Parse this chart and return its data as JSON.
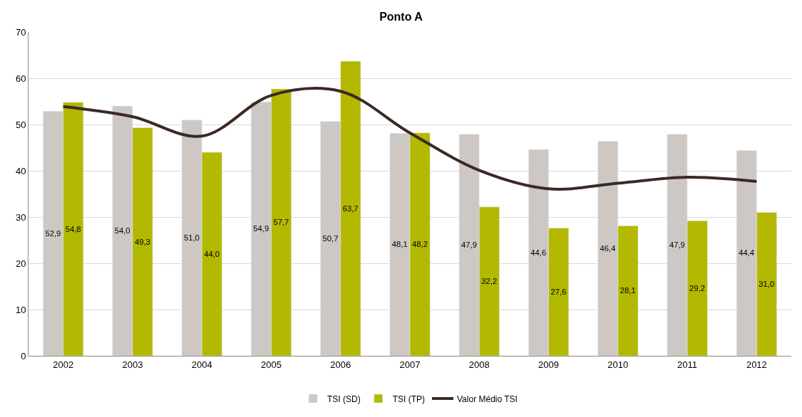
{
  "chart_data": {
    "type": "bar",
    "title": "Ponto A",
    "categories": [
      "2002",
      "2003",
      "2004",
      "2005",
      "2006",
      "2007",
      "2008",
      "2009",
      "2010",
      "2011",
      "2012"
    ],
    "series": [
      {
        "name": "TSI (SD)",
        "color": "#cdc8c3",
        "values": [
          52.9,
          54.0,
          51.0,
          54.9,
          50.7,
          48.1,
          47.9,
          44.6,
          46.4,
          47.9,
          44.4
        ],
        "value_labels": [
          "52,9",
          "54,0",
          "51,0",
          "54,9",
          "50,7",
          "48,1",
          "47,9",
          "44,6",
          "46,4",
          "47,9",
          "44,4"
        ]
      },
      {
        "name": "TSI (TP)",
        "color": "#b2b900",
        "values": [
          54.8,
          49.3,
          44.0,
          57.7,
          63.7,
          48.2,
          32.2,
          27.6,
          28.1,
          29.2,
          31.0
        ],
        "value_labels": [
          "54,8",
          "49,3",
          "44,0",
          "57,7",
          "63,7",
          "48,2",
          "32,2",
          "27,6",
          "28,1",
          "29,2",
          "31,0"
        ]
      },
      {
        "name": "Valor Médio TSI",
        "type": "line",
        "color": "#3b2a24",
        "values": [
          53.9,
          51.7,
          47.5,
          56.3,
          57.2,
          48.2,
          40.1,
          36.1,
          37.3,
          38.6,
          37.7
        ]
      }
    ],
    "ylim": [
      0,
      70
    ],
    "yticks": [
      0,
      10,
      20,
      30,
      40,
      50,
      60,
      70
    ],
    "grid": "y",
    "legend": "bottom",
    "marker": "none"
  }
}
